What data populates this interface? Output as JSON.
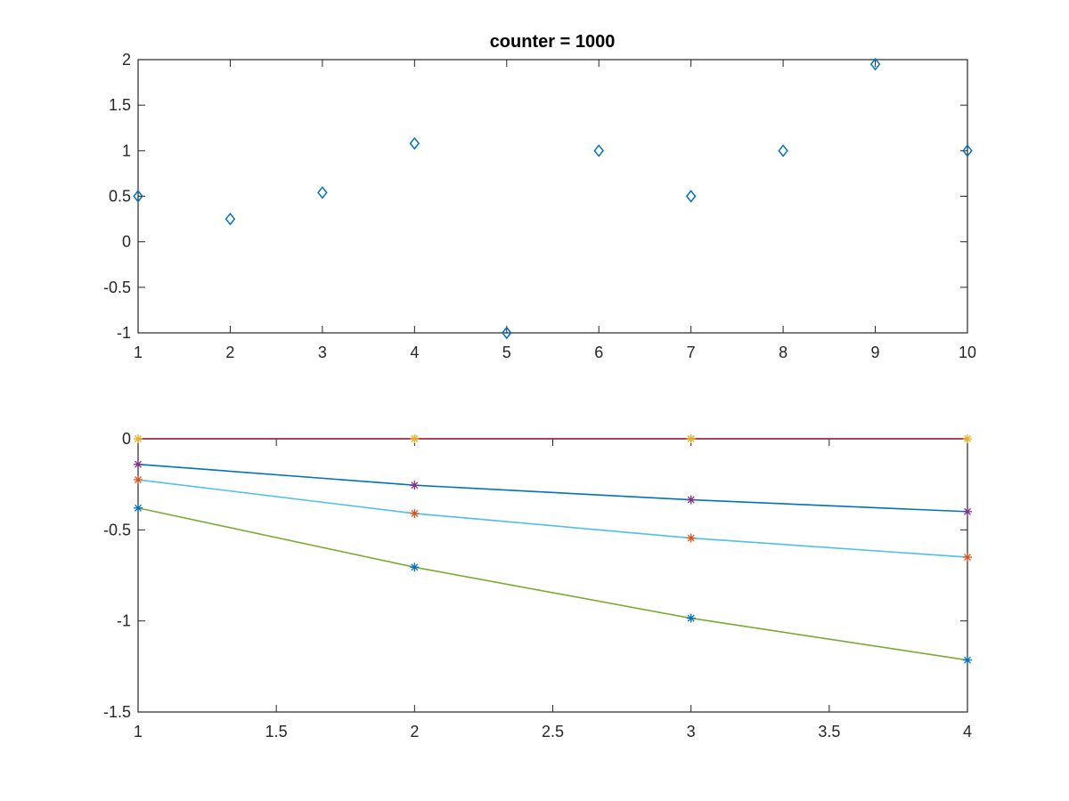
{
  "chart_data": [
    {
      "type": "scatter",
      "title": "counter = 1000",
      "xlabel": "",
      "ylabel": "",
      "xlim": [
        1,
        10
      ],
      "ylim": [
        -1,
        2
      ],
      "xticks": [
        1,
        2,
        3,
        4,
        5,
        6,
        7,
        8,
        9,
        10
      ],
      "yticks": [
        -1,
        -0.5,
        0,
        0.5,
        1,
        1.5,
        2
      ],
      "xtick_labels": [
        "1",
        "2",
        "3",
        "4",
        "5",
        "6",
        "7",
        "8",
        "9",
        "10"
      ],
      "ytick_labels": [
        "-1",
        "-0.5",
        "0",
        "0.5",
        "1",
        "1.5",
        "2"
      ],
      "grid": false,
      "marker": "diamond",
      "color": "#0072BD",
      "x": [
        1,
        2,
        3,
        4,
        5,
        6,
        7,
        8,
        9,
        10
      ],
      "y": [
        0.5,
        0.25,
        0.54,
        1.08,
        -1.0,
        1.0,
        0.5,
        1.0,
        1.95,
        1.0
      ]
    },
    {
      "type": "line",
      "title": "",
      "xlabel": "",
      "ylabel": "",
      "xlim": [
        1,
        4
      ],
      "ylim": [
        -1.5,
        0
      ],
      "xticks": [
        1,
        1.5,
        2,
        2.5,
        3,
        3.5,
        4
      ],
      "yticks": [
        -1.5,
        -1,
        -0.5,
        0
      ],
      "xtick_labels": [
        "1",
        "1.5",
        "2",
        "2.5",
        "3",
        "3.5",
        "4"
      ],
      "ytick_labels": [
        "-1.5",
        "-1",
        "-0.5",
        "0"
      ],
      "grid": false,
      "x": [
        1,
        2,
        3,
        4
      ],
      "lines": [
        {
          "color": "#A2142F",
          "values": [
            0,
            0,
            0,
            0
          ]
        },
        {
          "color": "#0072BD",
          "values": [
            -0.14,
            -0.255,
            -0.335,
            -0.4
          ]
        },
        {
          "color": "#4DBEEE",
          "values": [
            -0.225,
            -0.41,
            -0.545,
            -0.65
          ]
        },
        {
          "color": "#77AC30",
          "values": [
            -0.38,
            -0.705,
            -0.985,
            -1.215
          ]
        }
      ],
      "markers": [
        {
          "marker": "asterisk",
          "color": "#EDB120",
          "values": [
            0,
            0,
            0,
            0
          ]
        },
        {
          "marker": "asterisk",
          "color": "#7E2F8E",
          "values": [
            -0.14,
            -0.255,
            -0.335,
            -0.4
          ]
        },
        {
          "marker": "asterisk",
          "color": "#D95319",
          "values": [
            -0.225,
            -0.41,
            -0.545,
            -0.65
          ]
        },
        {
          "marker": "asterisk",
          "color": "#0072BD",
          "values": [
            -0.38,
            -0.705,
            -0.985,
            -1.215
          ]
        }
      ]
    }
  ]
}
